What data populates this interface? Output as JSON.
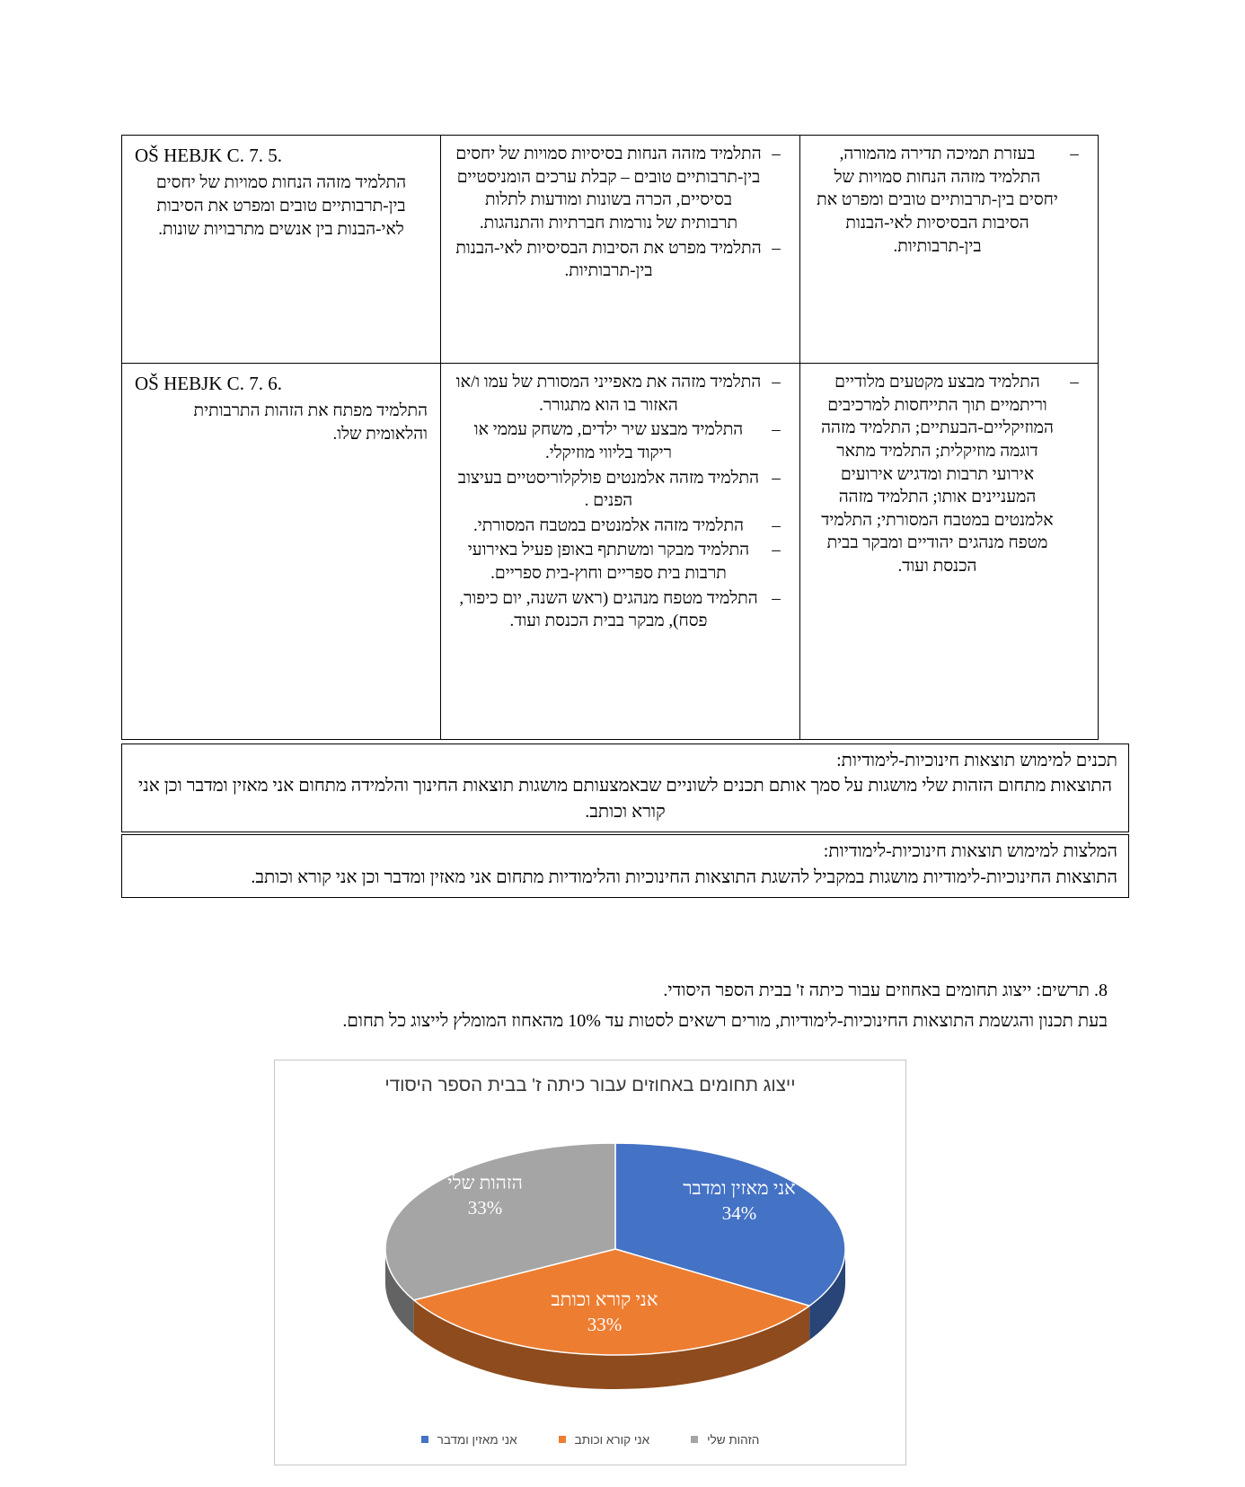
{
  "ui": {
    "list_marker": "–"
  },
  "table": {
    "rows": [
      {
        "code": "OŠ HEBJK C. 7. 5.",
        "description": "התלמיד מזהה הנחות סמויות של יחסים בין-תרבותיים טובים ומפרט את הסיבות לאי-הבנות בין אנשים מתרבויות שונות.",
        "middle_items": [
          "התלמיד מזהה הנחות בסיסיות סמויות של יחסים בין-תרבותיים טובים – קבלת ערכים הומניסטיים בסיסיים, הכרה בשונות ומודעות לתלות תרבותית של נורמות חברתיות והתנהגות.",
          "התלמיד מפרט את הסיבות הבסיסיות לאי-הבנות בין-תרבותיות."
        ],
        "right_items": [
          "בעזרת תמיכה תדירה מהמורה, התלמיד מזהה הנחות סמויות של יחסים בין-תרבותיים טובים ומפרט את הסיבות הבסיסיות לאי-הבנות בין-תרבותיות."
        ]
      },
      {
        "code": "OŠ HEBJK C. 7. 6.",
        "description": "התלמיד מפתח את הזהות התרבותית והלאומית שלו.",
        "middle_items": [
          "התלמיד מזהה את מאפייני המסורת של עמו ו/או האזור בו הוא מתגורר.",
          "התלמיד מבצע שיר ילדים, משחק עממי או ריקוד בליווי מוזיקלי.",
          "התלמיד מזהה אלמנטים פולקלוריסטיים בעיצוב הפנים .",
          "התלמיד מזהה אלמנטים במטבח המסורתי.",
          "התלמיד מבקר ומשתתף באופן פעיל באירועי תרבות בית ספריים וחוץ-בית ספריים.",
          "התלמיד מטפח מנהגים (ראש השנה, יום כיפור, פסח), מבקר בבית הכנסת ועוד."
        ],
        "right_items": [
          "התלמיד מבצע מקטעים מלודיים וריתמיים תוך התייחסות למרכיבים המוזיקליים-הבעתיים; התלמיד מזהה דוגמה מוזיקלית; התלמיד מתאר אירועי תרבות ומדגיש אירועים המעניינים אותו; התלמיד מזהה אלמנטים במטבח המסורתי; התלמיד מטפח מנהגים יהודיים ומבקר בבית הכנסת ועוד."
        ]
      }
    ]
  },
  "sections": [
    {
      "heading": "תכנים למימוש תוצאות חינוכיות-לימודיות:",
      "body": "התוצאות מתחום הזהות שלי מושגות על סמך אותם תכנים לשוניים שבאמצעותם מושגות תוצאות החינוך והלמידה מתחום אני מאזין ומדבר וכן אני קורא וכותב."
    },
    {
      "heading": "המלצות למימוש תוצאות חינוכיות-לימודיות:",
      "body": "התוצאות החינוכיות-לימודיות מושגות במקביל להשגת התוצאות החינוכיות והלימודיות מתחום אני מאזין ומדבר וכן אני קורא וכותב."
    }
  ],
  "figure_note": {
    "line1": "8. תרשים: ייצוג תחומים באחוזים עבור כיתה ז' בבית הספר היסודי.",
    "line2": "בעת תכנון והגשמת התוצאות החינוכיות-לימודיות, מורים רשאים לסטות עד 10% מהאחוז המומלץ לייצוג כל תחום."
  },
  "chart_data": {
    "type": "pie",
    "style": "3d",
    "title": "ייצוג תחומים באחוזים עבור כיתה ז' בבית הספר היסודי",
    "slices": [
      {
        "label": "אני מאזין ומדבר",
        "value": 34,
        "pct_text": "34%",
        "color": "#4472C4"
      },
      {
        "label": "אני קורא וכותב",
        "value": 33,
        "pct_text": "33%",
        "color": "#ED7D31"
      },
      {
        "label": "הזהות שלי",
        "value": 33,
        "pct_text": "33%",
        "color": "#A5A5A5"
      }
    ],
    "legend_position": "bottom",
    "legend_items": [
      {
        "label": "הזהות שלי",
        "color": "#A5A5A5"
      },
      {
        "label": "אני קורא וכותב",
        "color": "#ED7D31"
      },
      {
        "label": "אני מאזין ומדבר",
        "color": "#4472C4"
      }
    ]
  }
}
